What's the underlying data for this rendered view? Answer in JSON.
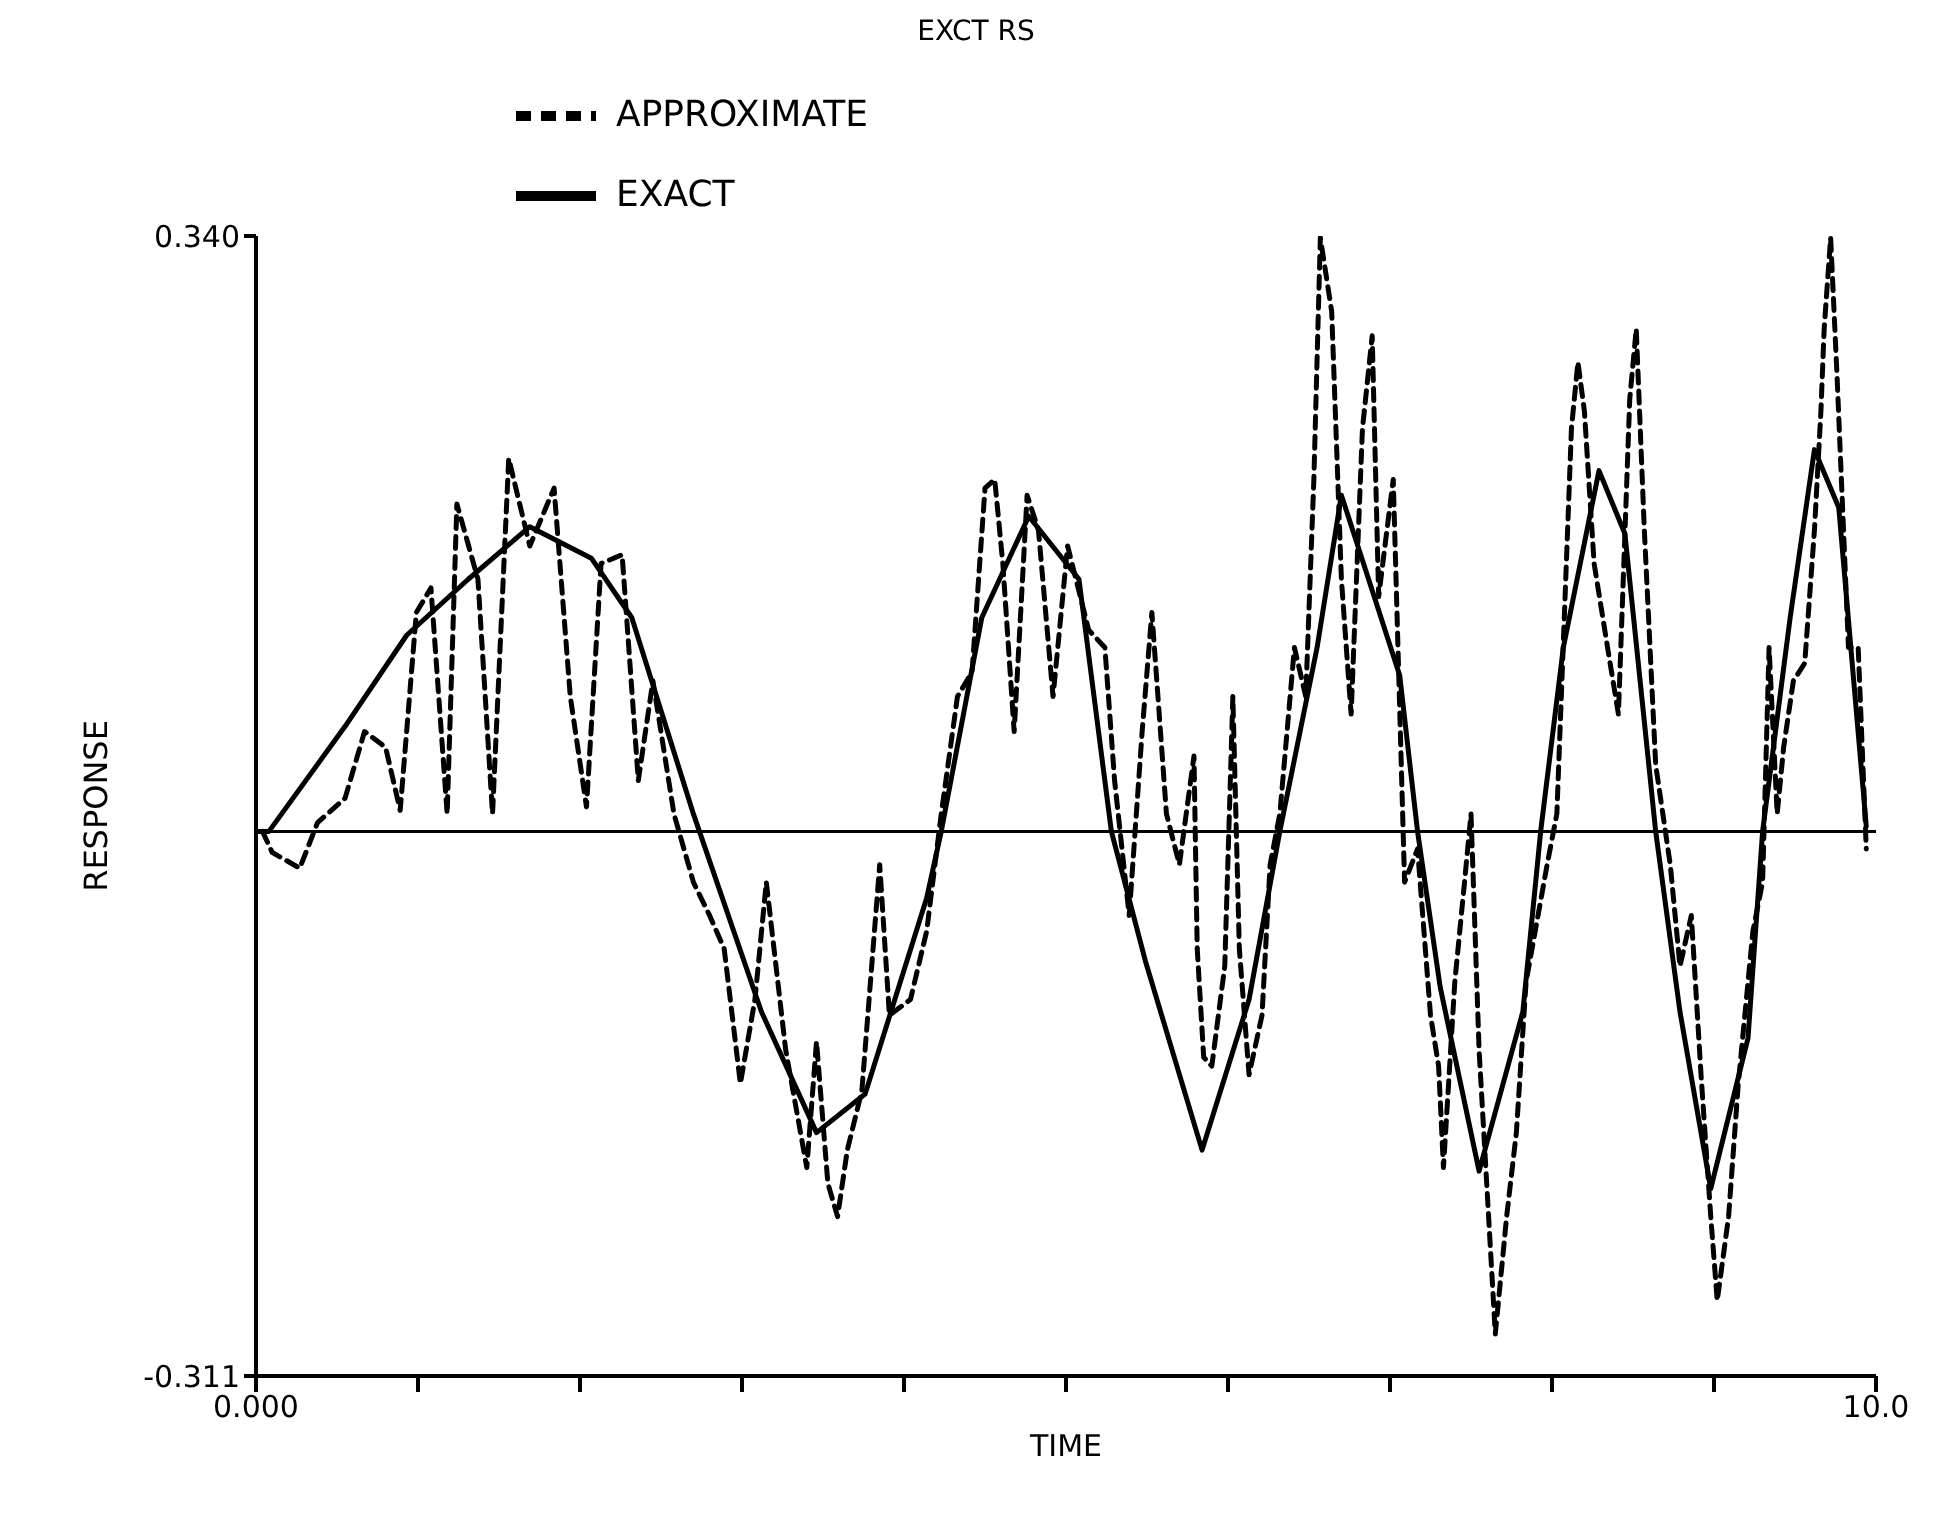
{
  "chart_data": {
    "type": "line",
    "title": "EXCT RS",
    "xlabel": "TIME",
    "ylabel": "RESPONSE",
    "xlim": [
      0,
      10
    ],
    "ylim": [
      -0.311,
      0.34
    ],
    "xticks": [
      {
        "value": 0,
        "label": "0.000"
      },
      {
        "value": 1,
        "label": null
      },
      {
        "value": 2,
        "label": null
      },
      {
        "value": 3,
        "label": null
      },
      {
        "value": 4,
        "label": null
      },
      {
        "value": 5,
        "label": null
      },
      {
        "value": 6,
        "label": null
      },
      {
        "value": 7,
        "label": null
      },
      {
        "value": 8,
        "label": null
      },
      {
        "value": 9,
        "label": null
      },
      {
        "value": 10,
        "label": "10.0"
      }
    ],
    "yticks": [
      -0.311,
      {
        "value": 0.34,
        "label": "0.340"
      }
    ],
    "grid": false,
    "legend": "top",
    "marker": "none",
    "ref_lines": [
      {
        "axis": "y",
        "value": 0,
        "label": null,
        "color": "#000000",
        "line_style": "solid"
      }
    ],
    "series": [
      {
        "name": "EXACT",
        "color": "#000000",
        "line_style": "solid",
        "x": [
          0,
          0.08,
          0.55,
          0.93,
          1.31,
          1.69,
          2.07,
          2.32,
          2.7,
          3.12,
          3.46,
          3.76,
          4.14,
          4.23,
          4.48,
          4.77,
          5.08,
          5.28,
          5.49,
          5.84,
          6.13,
          6.32,
          6.55,
          6.7,
          7.06,
          7.17,
          7.31,
          7.55,
          7.82,
          7.93,
          8.07,
          8.29,
          8.45,
          8.64,
          8.79,
          8.98,
          9.21,
          9.3,
          9.47,
          9.62,
          9.77,
          9.94
        ],
        "values": [
          0,
          0,
          0.06,
          0.112,
          0.144,
          0.174,
          0.156,
          0.122,
          0.01,
          -0.103,
          -0.172,
          -0.15,
          -0.038,
          0,
          0.122,
          0.18,
          0.144,
          0,
          -0.074,
          -0.182,
          -0.096,
          0,
          0.105,
          0.192,
          0.089,
          0,
          -0.089,
          -0.194,
          -0.103,
          0,
          0.105,
          0.206,
          0.17,
          0,
          -0.103,
          -0.204,
          -0.118,
          0,
          0.122,
          0.218,
          0.185,
          0.003
        ]
      },
      {
        "name": "APPROXIMATE",
        "color": "#000000",
        "line_style": "dashed",
        "x": [
          0.04,
          0.1,
          0.27,
          0.38,
          0.55,
          0.67,
          0.8,
          0.89,
          0.99,
          1.08,
          1.18,
          1.24,
          1.37,
          1.46,
          1.56,
          1.69,
          1.84,
          1.94,
          2.04,
          2.13,
          2.26,
          2.36,
          2.45,
          2.58,
          2.7,
          2.8,
          2.89,
          2.99,
          3.08,
          3.15,
          3.27,
          3.4,
          3.46,
          3.53,
          3.59,
          3.65,
          3.74,
          3.85,
          3.91,
          4.04,
          4.14,
          4.23,
          4.33,
          4.42,
          4.5,
          4.56,
          4.61,
          4.68,
          4.76,
          4.83,
          4.92,
          5.01,
          5.14,
          5.24,
          5.3,
          5.39,
          5.47,
          5.53,
          5.62,
          5.7,
          5.79,
          5.81,
          5.85,
          5.9,
          5.98,
          6.03,
          6.07,
          6.13,
          6.21,
          6.26,
          6.32,
          6.41,
          6.48,
          6.53,
          6.57,
          6.64,
          6.7,
          6.76,
          6.83,
          6.89,
          6.93,
          7.02,
          7.09,
          7.17,
          7.25,
          7.3,
          7.33,
          7.4,
          7.46,
          7.5,
          7.55,
          7.6,
          7.65,
          7.72,
          7.78,
          7.84,
          7.97,
          8.03,
          8.12,
          8.16,
          8.2,
          8.26,
          8.35,
          8.41,
          8.48,
          8.52,
          8.57,
          8.64,
          8.73,
          8.79,
          8.86,
          8.92,
          8.98,
          9.02,
          9.09,
          9.15,
          9.21,
          9.24,
          9.3,
          9.34,
          9.39,
          9.43,
          9.49,
          9.56,
          9.62,
          9.66,
          9.68,
          9.72,
          9.76,
          9.83,
          9.89,
          9.94
        ],
        "values": [
          0,
          -0.012,
          -0.021,
          0.005,
          0.019,
          0.057,
          0.048,
          0.012,
          0.125,
          0.139,
          0.01,
          0.187,
          0.144,
          0.01,
          0.213,
          0.163,
          0.196,
          0.077,
          0.014,
          0.153,
          0.158,
          0.029,
          0.086,
          0.01,
          -0.029,
          -0.048,
          -0.067,
          -0.144,
          -0.096,
          -0.029,
          -0.125,
          -0.192,
          -0.12,
          -0.201,
          -0.22,
          -0.182,
          -0.148,
          -0.019,
          -0.105,
          -0.096,
          -0.057,
          0.01,
          0.077,
          0.091,
          0.196,
          0.201,
          0.153,
          0.057,
          0.192,
          0.172,
          0.077,
          0.163,
          0.115,
          0.105,
          0.029,
          -0.048,
          0.057,
          0.125,
          0.01,
          -0.019,
          0.043,
          -0.067,
          -0.129,
          -0.134,
          -0.077,
          0.077,
          -0.067,
          -0.139,
          -0.105,
          -0.019,
          0.01,
          0.105,
          0.077,
          0.201,
          0.339,
          0.297,
          0.144,
          0.067,
          0.23,
          0.283,
          0.134,
          0.201,
          -0.029,
          -0.01,
          -0.105,
          -0.134,
          -0.192,
          -0.086,
          -0.029,
          0.01,
          -0.125,
          -0.206,
          -0.287,
          -0.22,
          -0.172,
          -0.086,
          -0.019,
          0.01,
          0.23,
          0.268,
          0.24,
          0.153,
          0.101,
          0.067,
          0.247,
          0.287,
          0.172,
          0.038,
          -0.019,
          -0.077,
          -0.048,
          -0.139,
          -0.22,
          -0.268,
          -0.22,
          -0.144,
          -0.086,
          -0.057,
          -0.029,
          0.105,
          0.01,
          0.048,
          0.086,
          0.096,
          0.172,
          0.24,
          0.287,
          0.339,
          0.259,
          0.105,
          0.105,
          -0.01
        ]
      }
    ]
  }
}
